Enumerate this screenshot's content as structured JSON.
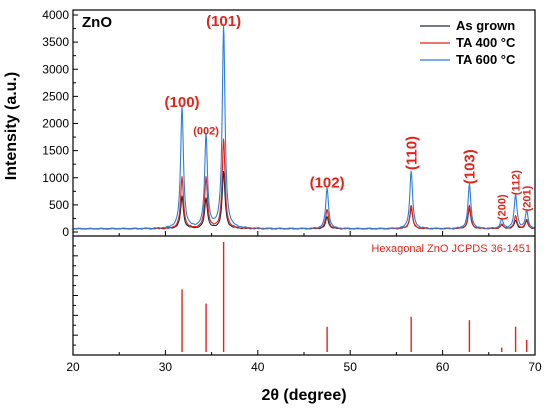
{
  "chart_data": {
    "type": "line",
    "sample_label": "ZnO",
    "xlabel": "2θ (degree)",
    "ylabel": "Intensity (a.u.)",
    "xlim": [
      20,
      70
    ],
    "ylim": [
      0,
      4000
    ],
    "x_ticks": [
      20,
      30,
      40,
      50,
      60,
      70
    ],
    "y_ticks": [
      0,
      500,
      1000,
      1500,
      2000,
      2500,
      3000,
      3500,
      4000
    ],
    "legend_position": "top-right",
    "background_level": 60,
    "peak_width": 0.18,
    "peak_positions": [
      31.8,
      34.4,
      36.3,
      47.5,
      56.6,
      62.9,
      66.4,
      67.9,
      69.1
    ],
    "series": [
      {
        "name": "As grown",
        "color": "#1f2c3a",
        "peak_heights": [
          600,
          560,
          1050,
          220,
          380,
          370,
          70,
          150,
          140
        ]
      },
      {
        "name": "TA 400 °C",
        "color": "#e2231a",
        "peak_heights": [
          950,
          950,
          1650,
          360,
          430,
          430,
          80,
          230,
          170
        ]
      },
      {
        "name": "TA 600 °C",
        "color": "#2f7ed8",
        "peak_heights": [
          2250,
          1720,
          3720,
          750,
          1070,
          820,
          170,
          620,
          320
        ]
      }
    ],
    "peak_labels": [
      {
        "text": "(100)",
        "x": 31.8,
        "y": 2300
      },
      {
        "text": "(002)",
        "x": 34.4,
        "y": 1800
      },
      {
        "text": "(101)",
        "x": 36.3,
        "y": 3800
      },
      {
        "text": "(102)",
        "x": 47.5,
        "y": 820
      },
      {
        "text": "(110)",
        "x": 56.6,
        "y": 1140
      },
      {
        "text": "(103)",
        "x": 62.9,
        "y": 880
      },
      {
        "text": "(200)",
        "x": 66.4,
        "y": 220
      },
      {
        "text": "(112)",
        "x": 67.9,
        "y": 680
      },
      {
        "text": "(201)",
        "x": 69.1,
        "y": 380
      }
    ],
    "reference": {
      "label": "Hexagonal ZnO JCPDS 36-1451",
      "color": "#e2231a",
      "peaks": [
        {
          "x": 31.8,
          "intensity": 57
        },
        {
          "x": 34.4,
          "intensity": 44
        },
        {
          "x": 36.3,
          "intensity": 100
        },
        {
          "x": 47.5,
          "intensity": 23
        },
        {
          "x": 56.6,
          "intensity": 32
        },
        {
          "x": 62.9,
          "intensity": 29
        },
        {
          "x": 66.4,
          "intensity": 4
        },
        {
          "x": 67.9,
          "intensity": 23
        },
        {
          "x": 69.1,
          "intensity": 11
        }
      ]
    }
  }
}
